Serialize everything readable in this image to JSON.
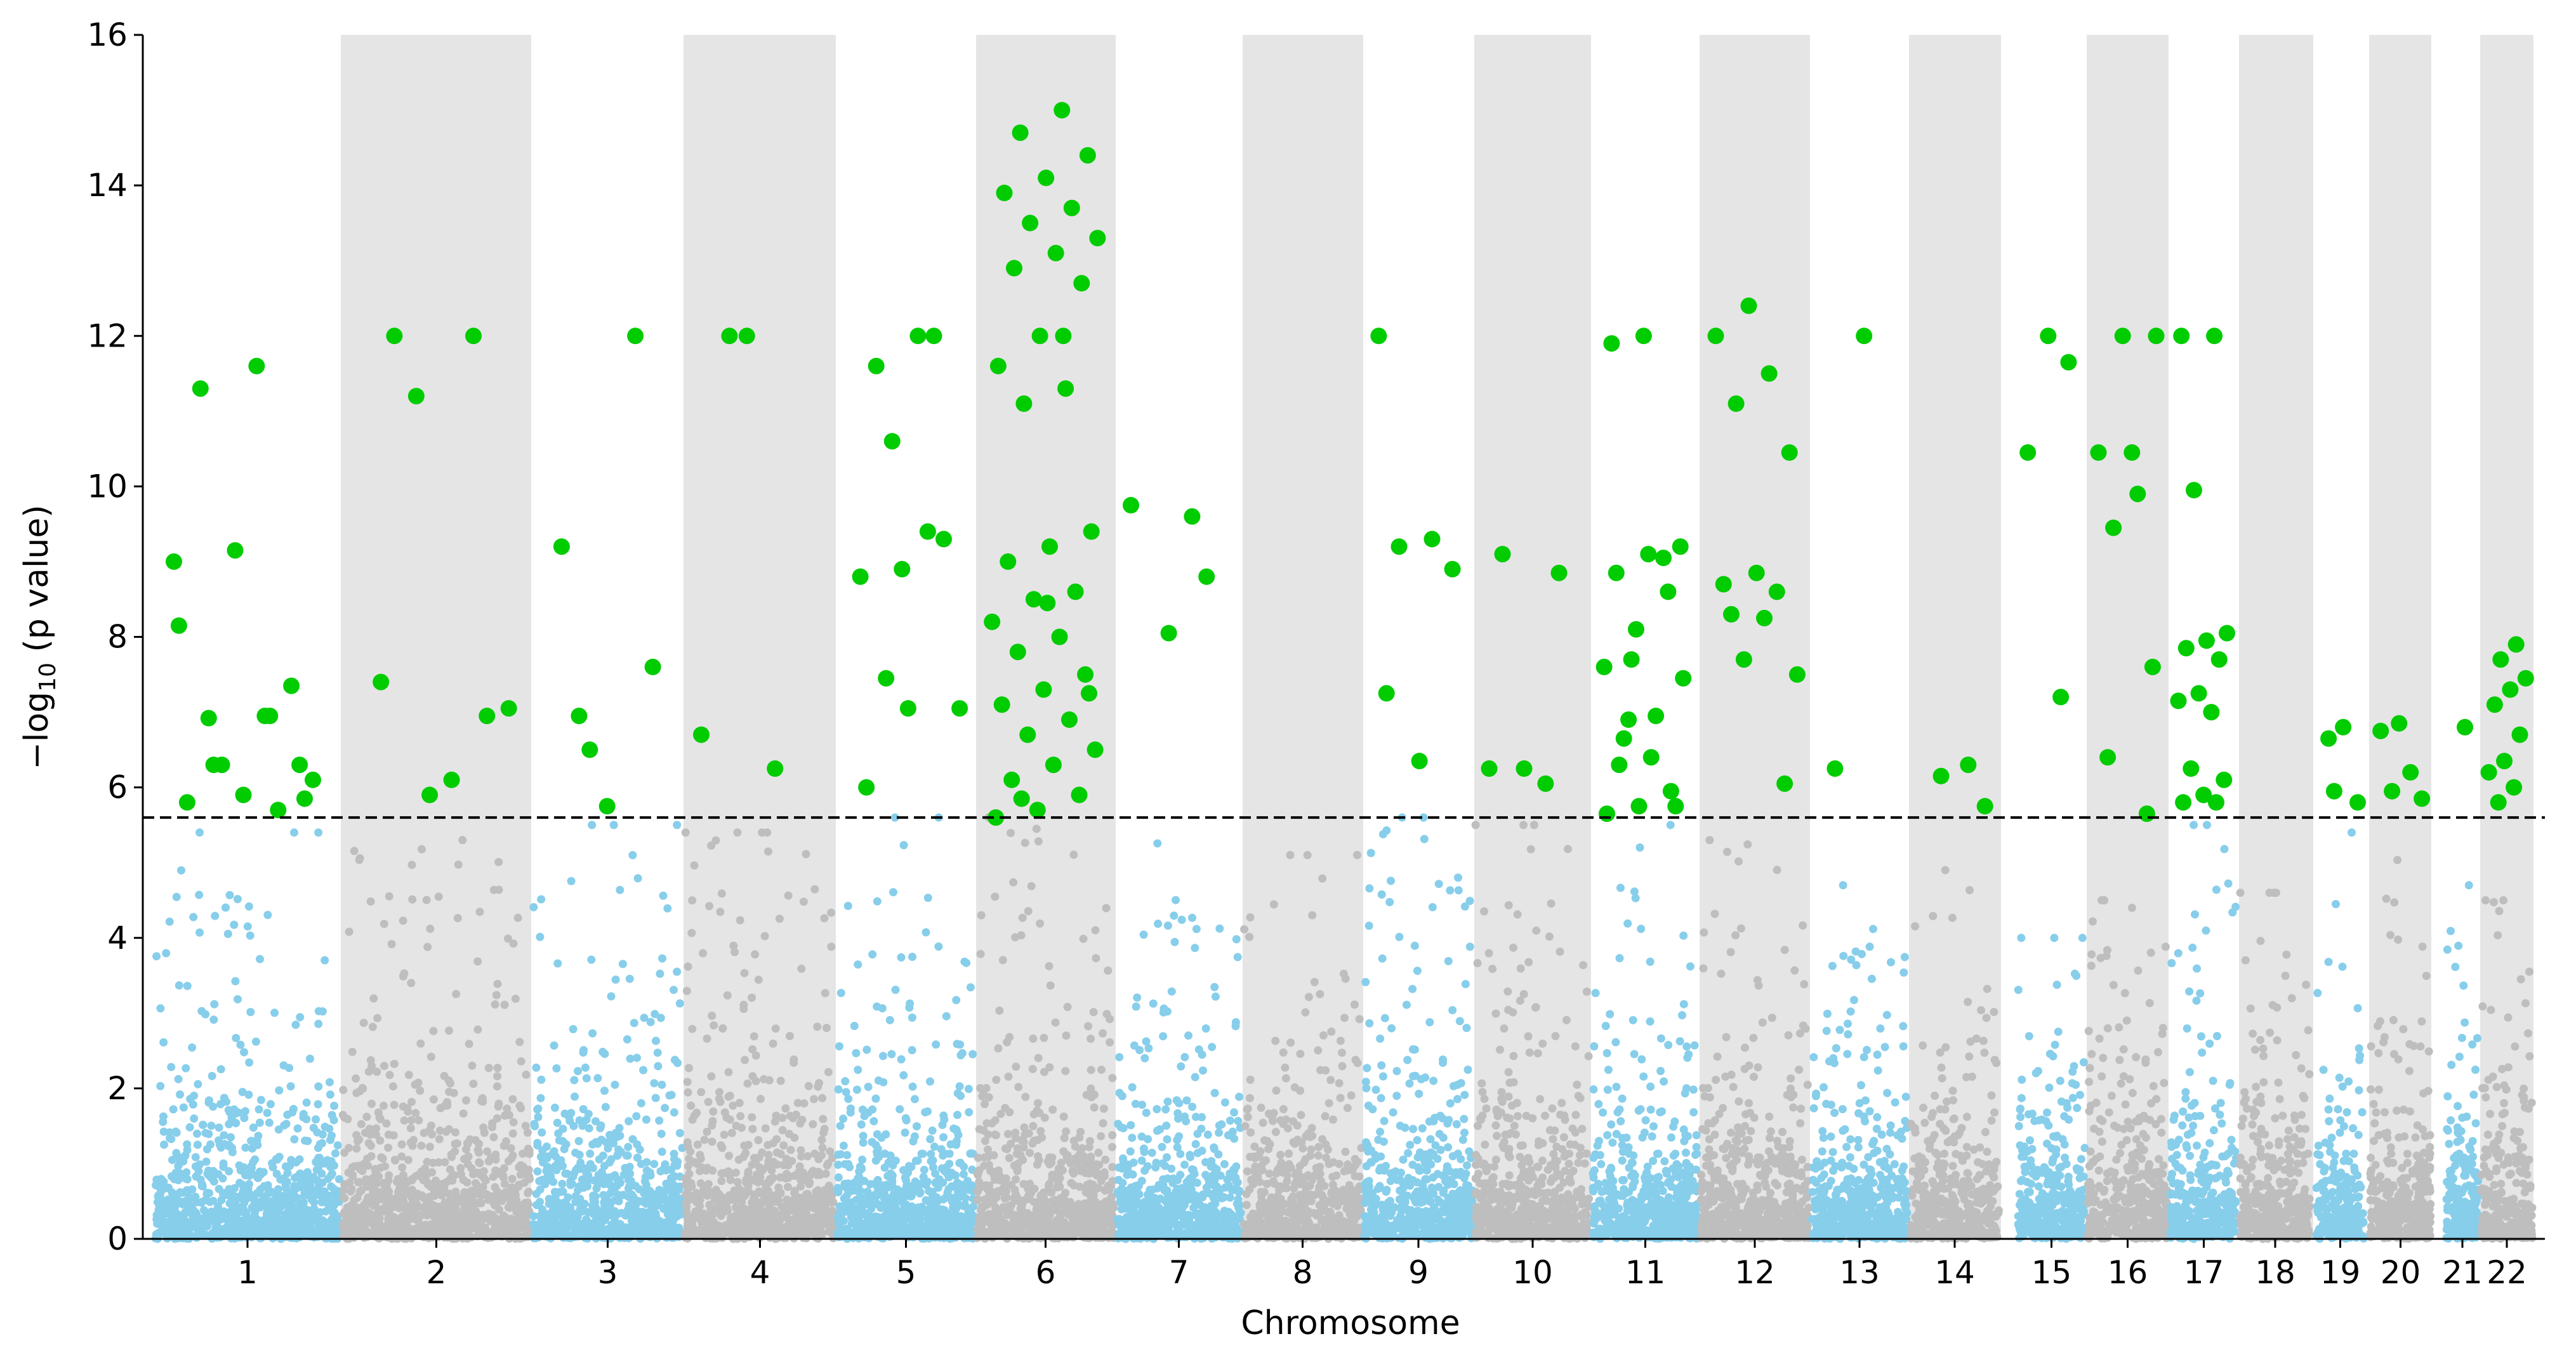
{
  "chart_data": {
    "type": "scatter",
    "subtype": "manhattan",
    "title": "",
    "xlabel": "Chromosome",
    "ylabel_prefix": "−log",
    "ylabel_sub": "10",
    "ylabel_suffix": " (p value)",
    "ylim": [
      0,
      16
    ],
    "yticks": [
      0,
      2,
      4,
      6,
      8,
      10,
      12,
      14,
      16
    ],
    "threshold": 5.6,
    "colors": {
      "odd_points": "#87ceeb",
      "even_points": "#bebebe",
      "significant": "#00cc00",
      "band": "#e5e5e5",
      "threshold_line": "#000000"
    },
    "chromosomes": [
      {
        "label": "1",
        "lower_max": 5.4,
        "significant": [
          9.0,
          6.95,
          6.92,
          6.3,
          5.9,
          5.8,
          5.7,
          6.3,
          6.1,
          11.6,
          11.3,
          7.35,
          9.15,
          8.15,
          6.95,
          6.3,
          5.85
        ]
      },
      {
        "label": "2",
        "lower_max": 5.3,
        "significant": [
          7.4,
          12.0,
          11.2,
          7.05,
          6.1,
          12.0,
          6.95,
          5.9
        ]
      },
      {
        "label": "3",
        "lower_max": 5.5,
        "significant": [
          6.95,
          7.6,
          5.75,
          9.2,
          12.0,
          6.5
        ]
      },
      {
        "label": "4",
        "lower_max": 5.4,
        "significant": [
          12.0,
          6.7,
          6.25,
          12.0
        ]
      },
      {
        "label": "5",
        "lower_max": 5.6,
        "significant": [
          7.05,
          6.0,
          12.0,
          10.6,
          7.05,
          12.0,
          11.6,
          9.3,
          8.9,
          8.8,
          9.4,
          7.45
        ]
      },
      {
        "label": "6",
        "lower_max": 5.6,
        "significant": [
          15.0,
          14.7,
          14.4,
          14.1,
          13.9,
          13.7,
          13.5,
          13.3,
          13.1,
          12.9,
          12.7,
          12.0,
          11.6,
          11.3,
          11.1,
          9.4,
          9.2,
          9.0,
          8.6,
          8.5,
          8.2,
          8.0,
          7.8,
          7.5,
          7.3,
          7.1,
          6.9,
          6.7,
          6.5,
          6.3,
          6.1,
          5.9,
          5.7,
          5.6,
          12.0,
          5.85,
          7.25,
          8.45
        ]
      },
      {
        "label": "7",
        "lower_max": 5.3,
        "significant": [
          8.8,
          8.05,
          9.75,
          9.6
        ]
      },
      {
        "label": "8",
        "lower_max": 5.1,
        "significant": []
      },
      {
        "label": "9",
        "lower_max": 5.6,
        "significant": [
          12.0,
          9.3,
          9.2,
          8.9,
          6.35,
          7.25
        ]
      },
      {
        "label": "10",
        "lower_max": 5.5,
        "significant": [
          9.1,
          8.85,
          6.25,
          6.25,
          6.05
        ]
      },
      {
        "label": "11",
        "lower_max": 5.5,
        "significant": [
          6.9,
          9.2,
          9.1,
          8.85,
          8.6,
          8.1,
          7.6,
          6.95,
          6.65,
          5.75,
          12.0,
          11.9,
          9.05,
          7.7,
          7.45,
          6.4,
          6.3,
          5.95,
          5.75,
          5.65
        ]
      },
      {
        "label": "12",
        "lower_max": 5.3,
        "significant": [
          12.4,
          12.0,
          11.5,
          11.1,
          10.45,
          8.85,
          8.7,
          8.6,
          7.7,
          7.5,
          8.25,
          8.3,
          6.05
        ]
      },
      {
        "label": "13",
        "lower_max": 4.7,
        "significant": [
          12.0,
          6.25
        ]
      },
      {
        "label": "14",
        "lower_max": 4.9,
        "significant": [
          6.3,
          6.15,
          5.75
        ]
      },
      {
        "label": "15",
        "lower_max": 4.0,
        "significant": [
          11.65,
          12.0,
          10.45,
          7.2
        ]
      },
      {
        "label": "16",
        "lower_max": 4.5,
        "significant": [
          12.0,
          10.45,
          6.4,
          5.65,
          12.0,
          10.45,
          9.9,
          9.45,
          7.6
        ]
      },
      {
        "label": "17",
        "lower_max": 5.5,
        "significant": [
          12.0,
          12.0,
          9.95,
          8.05,
          7.95,
          7.85,
          7.7,
          7.25,
          7.15,
          7.0,
          6.25,
          6.1,
          5.9,
          5.8,
          5.8
        ]
      },
      {
        "label": "18",
        "lower_max": 4.6,
        "significant": []
      },
      {
        "label": "19",
        "lower_max": 5.4,
        "significant": [
          5.95,
          5.8,
          6.8,
          6.65
        ]
      },
      {
        "label": "20",
        "lower_max": 5.3,
        "significant": [
          6.85,
          6.75,
          6.2,
          5.95,
          5.85
        ]
      },
      {
        "label": "21",
        "lower_max": 5.0,
        "significant": [
          6.8
        ]
      },
      {
        "label": "22",
        "lower_max": 4.5,
        "significant": [
          7.9,
          7.7,
          7.45,
          7.3,
          7.1,
          6.7,
          6.35,
          6.2,
          6.0,
          5.8
        ]
      }
    ]
  }
}
